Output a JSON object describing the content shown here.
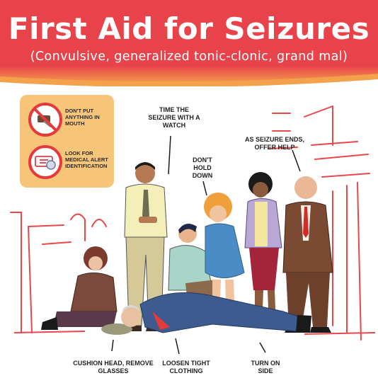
{
  "header": {
    "title": "First Aid for Seizures",
    "subtitle": "(Convulsive, generalized tonic-clonic, grand mal)"
  },
  "tips": [
    {
      "text": "DON'T PUT ANYTHING IN MOUTH",
      "icon": "no-object-in-mouth-icon"
    },
    {
      "text": "LOOK FOR MEDICAL ALERT IDENTIFICATION",
      "icon": "medical-alert-id-icon"
    }
  ],
  "callouts": {
    "time": "TIME THE SEIZURE WITH A WATCH",
    "hold": "DON'T HOLD DOWN",
    "help": "AS SEIZURE ENDS, OFFER HELP",
    "cushion": "CUSHION HEAD, REMOVE GLASSES",
    "loosen": "LOOSEN TIGHT CLOTHING",
    "side": "TURN ON SIDE"
  },
  "colors": {
    "header_red": "#e8434a",
    "header_orange": "#f3a14a",
    "tip_box": "#f6c57a",
    "tip_icon_ring": "#e5393b",
    "background_lines": "#e8484b"
  }
}
